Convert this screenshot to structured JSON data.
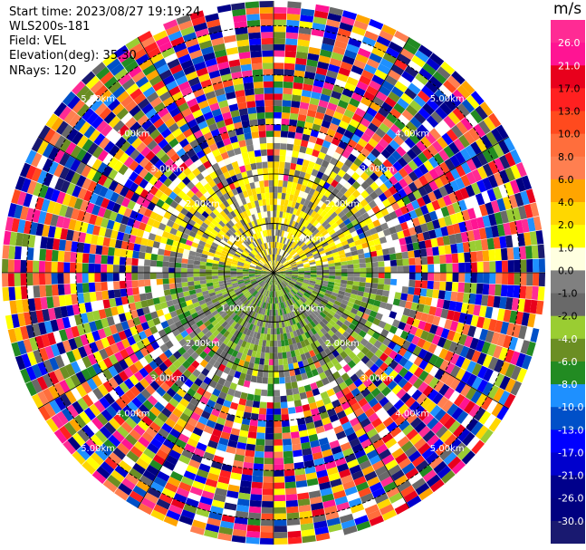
{
  "header": {
    "start_time": "Start time: 2023/08/27 19:19:24",
    "instrument": "WLS200s-181",
    "field": "Field: VEL",
    "elevation": "Elevation(deg): 35.30",
    "nrays": "NRays: 120"
  },
  "chart_data": {
    "type": "heatmap",
    "projection": "polar-ppi",
    "field": "VEL",
    "units": "m/s",
    "nrays": 120,
    "max_range_km": 5.5,
    "range_rings_km": [
      1.0,
      2.0,
      3.0,
      4.0,
      5.0
    ],
    "ring_labels": [
      "1.00km",
      "2.00km",
      "3.00km",
      "4.00km",
      "5.00km"
    ],
    "colorbar": {
      "unit": "m/s",
      "ticks": [
        "26.0",
        "21.0",
        "17.0",
        "13.0",
        "10.0",
        "8.0",
        "6.0",
        "4.0",
        "2.0",
        "1.0",
        "0.0",
        "-1.0",
        "-2.0",
        "-4.0",
        "-6.0",
        "-8.0",
        "-10.0",
        "-13.0",
        "-17.0",
        "-21.0",
        "-26.0",
        "-30.0"
      ],
      "colors": [
        "#ff2b94",
        "#ff1493",
        "#e8001c",
        "#ff2020",
        "#ff4a1e",
        "#ff6e3c",
        "#ff7f50",
        "#ffa500",
        "#ffd700",
        "#ffff00",
        "#ffffe0",
        "#808080",
        "#696969",
        "#9acd32",
        "#6b8e23",
        "#228b22",
        "#1e90ff",
        "#0050c8",
        "#0000ff",
        "#0000cd",
        "#00008b",
        "#000080",
        "#191970"
      ]
    }
  }
}
